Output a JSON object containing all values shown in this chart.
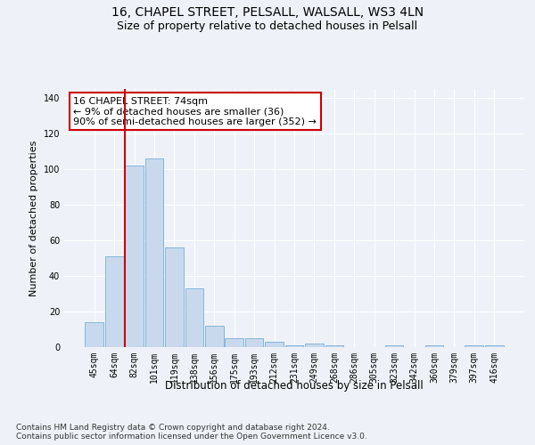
{
  "title1": "16, CHAPEL STREET, PELSALL, WALSALL, WS3 4LN",
  "title2": "Size of property relative to detached houses in Pelsall",
  "xlabel": "Distribution of detached houses by size in Pelsall",
  "ylabel": "Number of detached properties",
  "categories": [
    "45sqm",
    "64sqm",
    "82sqm",
    "101sqm",
    "119sqm",
    "138sqm",
    "156sqm",
    "175sqm",
    "193sqm",
    "212sqm",
    "231sqm",
    "249sqm",
    "268sqm",
    "286sqm",
    "305sqm",
    "323sqm",
    "342sqm",
    "360sqm",
    "379sqm",
    "397sqm",
    "416sqm"
  ],
  "values": [
    14,
    51,
    102,
    106,
    56,
    33,
    12,
    5,
    5,
    3,
    1,
    2,
    1,
    0,
    0,
    1,
    0,
    1,
    0,
    1,
    1
  ],
  "bar_color": "#c8d9ee",
  "bar_edge_color": "#7aadd4",
  "vline_x_index": 2,
  "vline_color": "#cc0000",
  "annotation_text": "16 CHAPEL STREET: 74sqm\n← 9% of detached houses are smaller (36)\n90% of semi-detached houses are larger (352) →",
  "annotation_box_color": "#ffffff",
  "annotation_box_edge_color": "#cc0000",
  "ylim": [
    0,
    145
  ],
  "yticks": [
    0,
    20,
    40,
    60,
    80,
    100,
    120,
    140
  ],
  "footnote": "Contains HM Land Registry data © Crown copyright and database right 2024.\nContains public sector information licensed under the Open Government Licence v3.0.",
  "background_color": "#eef2f8",
  "plot_bg_color": "#eef2f8",
  "grid_color": "#ffffff",
  "title1_fontsize": 10,
  "title2_fontsize": 9,
  "xlabel_fontsize": 8.5,
  "ylabel_fontsize": 8,
  "tick_fontsize": 7,
  "annotation_fontsize": 8,
  "footnote_fontsize": 6.5
}
